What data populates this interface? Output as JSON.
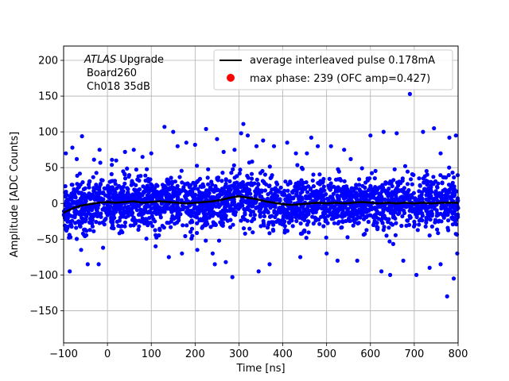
{
  "chart_data": {
    "type": "scatter",
    "xlabel": "Time [ns]",
    "ylabel": "Amplitude [ADC Counts]",
    "xlim": [
      -100,
      800
    ],
    "ylim": [
      -195,
      220
    ],
    "xticks": [
      -100,
      0,
      100,
      200,
      300,
      400,
      500,
      600,
      700,
      800
    ],
    "yticks": [
      -150,
      -100,
      -50,
      0,
      50,
      100,
      150,
      200
    ],
    "grid": true,
    "legend_position": "top-right",
    "annotation": {
      "experiment_italic": "ATLAS",
      "experiment_rest": " Upgrade",
      "board": "Board260",
      "channel": "Ch018 35dB"
    },
    "series": [
      {
        "name": "average interleaved pulse 0.178mA",
        "kind": "line",
        "color": "#000000",
        "points": [
          [
            -100,
            -13
          ],
          [
            -80,
            -7
          ],
          [
            -60,
            -3
          ],
          [
            -40,
            -1
          ],
          [
            -20,
            1
          ],
          [
            0,
            2
          ],
          [
            20,
            1
          ],
          [
            40,
            2
          ],
          [
            60,
            3
          ],
          [
            80,
            1
          ],
          [
            100,
            2
          ],
          [
            120,
            3
          ],
          [
            140,
            2
          ],
          [
            160,
            1
          ],
          [
            180,
            0
          ],
          [
            200,
            1
          ],
          [
            220,
            2
          ],
          [
            240,
            3
          ],
          [
            260,
            5
          ],
          [
            280,
            8
          ],
          [
            300,
            10
          ],
          [
            320,
            8
          ],
          [
            340,
            6
          ],
          [
            360,
            3
          ],
          [
            380,
            1
          ],
          [
            400,
            -1
          ],
          [
            420,
            -2
          ],
          [
            440,
            -1
          ],
          [
            460,
            0
          ],
          [
            480,
            1
          ],
          [
            500,
            0
          ],
          [
            520,
            1
          ],
          [
            540,
            0
          ],
          [
            560,
            1
          ],
          [
            580,
            2
          ],
          [
            600,
            1
          ],
          [
            620,
            0
          ],
          [
            640,
            1
          ],
          [
            660,
            0
          ],
          [
            680,
            1
          ],
          [
            700,
            0
          ],
          [
            720,
            1
          ],
          [
            740,
            0
          ],
          [
            760,
            1
          ],
          [
            780,
            1
          ],
          [
            800,
            1
          ]
        ]
      },
      {
        "name": "max phase: 239 (OFC amp=0.427)",
        "kind": "scatter",
        "color": "#0000ff",
        "band_sigma": 18,
        "outliers": [
          [
            -60,
            -65
          ],
          [
            -58,
            94
          ],
          [
            -86,
            -95
          ],
          [
            -45,
            -85
          ],
          [
            -20,
            -85
          ],
          [
            -18,
            75
          ],
          [
            -10,
            -62
          ],
          [
            -80,
            78
          ],
          [
            -70,
            62
          ],
          [
            20,
            60
          ],
          [
            40,
            72
          ],
          [
            60,
            75
          ],
          [
            80,
            65
          ],
          [
            100,
            70
          ],
          [
            130,
            107
          ],
          [
            140,
            -75
          ],
          [
            150,
            100
          ],
          [
            160,
            80
          ],
          [
            170,
            -70
          ],
          [
            180,
            85
          ],
          [
            200,
            82
          ],
          [
            225,
            104
          ],
          [
            240,
            -70
          ],
          [
            245,
            -85
          ],
          [
            250,
            90
          ],
          [
            270,
            -82
          ],
          [
            285,
            -103
          ],
          [
            290,
            75
          ],
          [
            305,
            98
          ],
          [
            310,
            111
          ],
          [
            320,
            95
          ],
          [
            340,
            80
          ],
          [
            345,
            -95
          ],
          [
            355,
            88
          ],
          [
            370,
            -85
          ],
          [
            380,
            80
          ],
          [
            410,
            85
          ],
          [
            430,
            70
          ],
          [
            440,
            -75
          ],
          [
            465,
            92
          ],
          [
            480,
            80
          ],
          [
            500,
            -70
          ],
          [
            510,
            80
          ],
          [
            525,
            -80
          ],
          [
            555,
            62
          ],
          [
            570,
            -80
          ],
          [
            600,
            95
          ],
          [
            625,
            -95
          ],
          [
            630,
            100
          ],
          [
            645,
            -100
          ],
          [
            660,
            98
          ],
          [
            675,
            -80
          ],
          [
            690,
            153
          ],
          [
            705,
            -100
          ],
          [
            720,
            100
          ],
          [
            735,
            -90
          ],
          [
            745,
            105
          ],
          [
            760,
            -85
          ],
          [
            775,
            -130
          ],
          [
            780,
            92
          ],
          [
            790,
            -105
          ],
          [
            795,
            95
          ],
          [
            798,
            -70
          ],
          [
            760,
            70
          ],
          [
            540,
            75
          ],
          [
            455,
            70
          ],
          [
            265,
            72
          ],
          [
            205,
            -65
          ],
          [
            110,
            -60
          ],
          [
            -95,
            70
          ]
        ]
      }
    ]
  }
}
